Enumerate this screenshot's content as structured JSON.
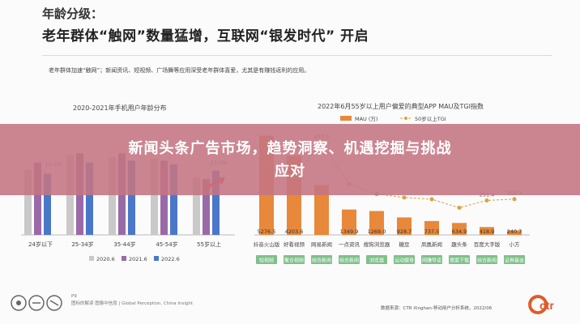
{
  "header": {
    "section_title": "年龄分级：",
    "main_title": "老年群体“触网”数量猛增，互联网“银发时代” 开启"
  },
  "description": "老年群体加速“触网”；新闻资讯、短视频、广场舞等应用深受老年群体喜爱，尤其是有赚钱返利的应用。",
  "banner": {
    "text_line1": "新闻头条广告市场，趋势洞察、机遇挖掘与挑战",
    "text_line2": "应对"
  },
  "footer": {
    "page": "P9",
    "source_left": "图标的解读 图像中信息",
    "source_left2": "| Global Perception, China Insight",
    "source_right": "数据来源：CTR Xinghan-移动用户分析系统，2022/06",
    "logo": "ctr"
  },
  "colors": {
    "y2020": "#c9c9c9",
    "y2021": "#9a6aa8",
    "y2022": "#4a78c8",
    "mau": "#e8883a",
    "tgi": "#d9a441",
    "tag_bg": "#7fc08a",
    "arrow": "#e0403a"
  },
  "chart_data": [
    {
      "type": "bar",
      "title": "2020-2021年手机用户年龄分布",
      "categories": [
        "24岁以下",
        "25-34岁",
        "35-44岁",
        "45-54岁",
        "55岁以上"
      ],
      "series": [
        {
          "name": "2020.6",
          "values": [
            17.5,
            21.5,
            21.0,
            20.5,
            15.5
          ]
        },
        {
          "name": "2021.6",
          "values": [
            19.5,
            22.0,
            22.0,
            20.0,
            15.0
          ]
        },
        {
          "name": "2022.6",
          "values": [
            16.5,
            19.5,
            20.0,
            19.0,
            17.3
          ]
        }
      ],
      "annotations": [
        "16.5%",
        "17.3%"
      ],
      "ylim": [
        0,
        24
      ]
    },
    {
      "type": "bar",
      "title": "2022年6月55岁以上用户偏爱的典型APP MAU及TGI指数",
      "categories": [
        "抖音火山版",
        "好看视频",
        "网易新闻",
        "一点资讯",
        "搜狗浏览器",
        "糖豆",
        "凤凰新闻",
        "趣头条",
        "百度大字版",
        "小方"
      ],
      "tags": [
        "短视频",
        "聚合视频",
        "综合新闻",
        "综合新闻",
        "浏览器",
        "运动健身",
        "网赚导读",
        "搜索下载",
        "综合新闻",
        "证券基金"
      ],
      "series": [
        {
          "name": "MAU (万)",
          "values": [
            5276.5,
            4203.6,
            2650.0,
            1349.9,
            1269.0,
            928.7,
            737.5,
            634.9,
            418.9,
            240.7
          ]
        },
        {
          "name": "50岁以上TGI",
          "values": [
            350,
            320,
            422.5,
            300,
            270,
            260,
            255,
            230,
            251.4,
            255.3
          ]
        }
      ],
      "value_labels": [
        "5276.5",
        "4203.6",
        "1349.9",
        "1269.0",
        "928.7",
        "737.5",
        "634.9",
        "418.9",
        "240.7"
      ],
      "tgi_labels": [
        "422.5",
        "251.4",
        "255.3"
      ]
    }
  ]
}
